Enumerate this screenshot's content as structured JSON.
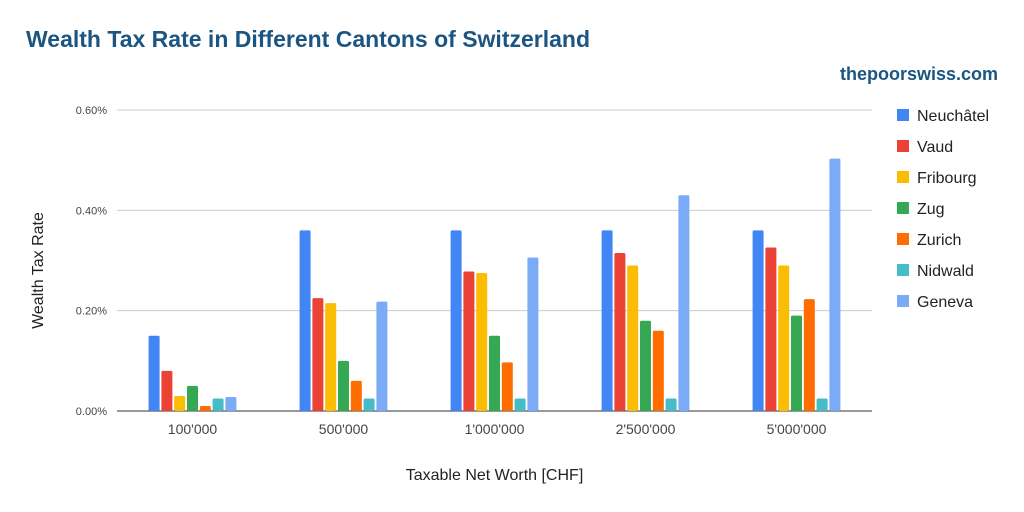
{
  "header": {
    "watermark": "thepoorswiss.com"
  },
  "chart_data": {
    "type": "bar",
    "title": "Wealth Tax Rate in Different Cantons of Switzerland",
    "xlabel": "Taxable Net Worth [CHF]",
    "ylabel": "Wealth Tax Rate",
    "ylim": [
      0,
      0.6
    ],
    "yticks": [
      "0.00%",
      "0.20%",
      "0.40%",
      "0.60%"
    ],
    "ytick_values": [
      0,
      0.2,
      0.4,
      0.6
    ],
    "grid": true,
    "legend_position": "right",
    "categories": [
      "100'000",
      "500'000",
      "1'000'000",
      "2'500'000",
      "5'000'000"
    ],
    "series": [
      {
        "name": "Neuchâtel",
        "color": "#4285f4",
        "values": [
          0.15,
          0.36,
          0.36,
          0.36,
          0.36
        ]
      },
      {
        "name": "Vaud",
        "color": "#ea4335",
        "values": [
          0.08,
          0.225,
          0.278,
          0.315,
          0.326
        ]
      },
      {
        "name": "Fribourg",
        "color": "#fbbc04",
        "values": [
          0.03,
          0.215,
          0.275,
          0.29,
          0.29
        ]
      },
      {
        "name": "Zug",
        "color": "#34a853",
        "values": [
          0.05,
          0.1,
          0.15,
          0.18,
          0.19
        ]
      },
      {
        "name": "Zurich",
        "color": "#ff6d01",
        "values": [
          0.01,
          0.06,
          0.097,
          0.16,
          0.223
        ]
      },
      {
        "name": "Nidwald",
        "color": "#46bdc6",
        "values": [
          0.025,
          0.025,
          0.025,
          0.025,
          0.025
        ]
      },
      {
        "name": "Geneva",
        "color": "#7baaf7",
        "values": [
          0.028,
          0.218,
          0.306,
          0.43,
          0.503
        ]
      }
    ]
  }
}
